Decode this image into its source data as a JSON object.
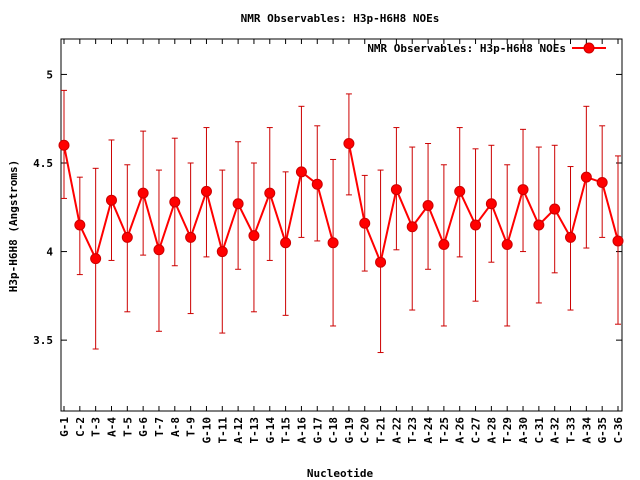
{
  "chart_data": {
    "type": "line",
    "title": "NMR Observables: H3p-H6H8 NOEs",
    "xlabel": "Nucleotide",
    "ylabel": "H3p-H6H8 (Angstroms)",
    "ylim": [
      3.1,
      5.2
    ],
    "yticks": [
      "3.5",
      "4",
      "4.5",
      "5"
    ],
    "grid": false,
    "legend_position": "top-right",
    "color": "#ff0000",
    "error_color": "#cc0000",
    "categories": [
      "G-1",
      "C-2",
      "T-3",
      "A-4",
      "T-5",
      "G-6",
      "T-7",
      "A-8",
      "T-9",
      "G-10",
      "T-11",
      "A-12",
      "T-13",
      "G-14",
      "T-15",
      "A-16",
      "G-17",
      "C-18",
      "G-19",
      "C-20",
      "T-21",
      "A-22",
      "T-23",
      "A-24",
      "T-25",
      "A-26",
      "C-27",
      "A-28",
      "T-29",
      "A-30",
      "C-31",
      "A-32",
      "T-33",
      "A-34",
      "G-35",
      "C-36"
    ],
    "series": [
      {
        "name": "NMR Observables: H3p-H6H8 NOEs",
        "segments": [
          [
            0,
            17
          ],
          [
            18,
            35
          ]
        ],
        "values": [
          4.6,
          4.15,
          3.96,
          4.29,
          4.08,
          4.33,
          4.01,
          4.28,
          4.08,
          4.34,
          4.0,
          4.27,
          4.09,
          4.33,
          4.05,
          4.45,
          4.38,
          4.05,
          4.61,
          4.16,
          3.94,
          4.35,
          4.14,
          4.26,
          4.04,
          4.34,
          4.15,
          4.27,
          4.04,
          4.35,
          4.15,
          4.24,
          4.08,
          4.42,
          4.39,
          4.06
        ],
        "err_low": [
          4.3,
          3.87,
          3.45,
          3.95,
          3.66,
          3.98,
          3.55,
          3.92,
          3.65,
          3.97,
          3.54,
          3.9,
          3.66,
          3.95,
          3.64,
          4.08,
          4.06,
          3.58,
          4.32,
          3.89,
          3.43,
          4.01,
          3.67,
          3.9,
          3.58,
          3.97,
          3.72,
          3.94,
          3.58,
          4.0,
          3.71,
          3.88,
          3.67,
          4.02,
          4.08,
          3.59
        ],
        "err_high": [
          4.91,
          4.42,
          4.47,
          4.63,
          4.49,
          4.68,
          4.46,
          4.64,
          4.5,
          4.7,
          4.46,
          4.62,
          4.5,
          4.7,
          4.45,
          4.82,
          4.71,
          4.52,
          4.89,
          4.43,
          4.46,
          4.7,
          4.59,
          4.61,
          4.49,
          4.7,
          4.58,
          4.6,
          4.49,
          4.69,
          4.59,
          4.6,
          4.48,
          4.82,
          4.71,
          4.54
        ]
      }
    ]
  }
}
